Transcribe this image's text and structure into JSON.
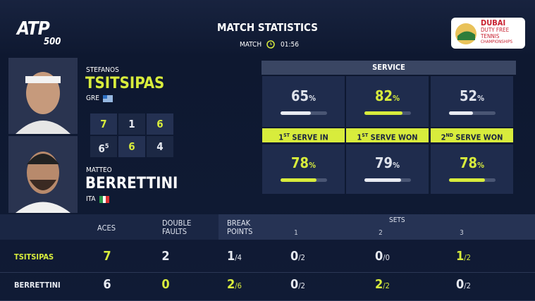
{
  "header": {
    "brand": "ATP",
    "tier": "500",
    "title": "MATCH STATISTICS",
    "match_label": "MATCH",
    "match_time": "01:56",
    "sponsor": [
      "DUBAI",
      "DUTY FREE",
      "TENNIS",
      "CHAMPIONSHIPS"
    ]
  },
  "highlight_color": "#d8ec3c",
  "players": [
    {
      "first": "STEFANOS",
      "last": "TSITSIPAS",
      "country": "GRE",
      "scores": [
        {
          "games": 7,
          "won": true
        },
        {
          "games": 1
        },
        {
          "games": 6,
          "won": true
        }
      ]
    },
    {
      "first": "MATTEO",
      "last": "BERRETTINI",
      "country": "ITA",
      "scores": [
        {
          "games": 6,
          "tiebreak": 5
        },
        {
          "games": 6,
          "won": true
        },
        {
          "games": 4
        }
      ]
    }
  ],
  "service": {
    "title": "SERVICE",
    "percent_sign": "%",
    "labels": [
      {
        "num": "1",
        "sup": "ST",
        "rest": "SERVE IN"
      },
      {
        "num": "1",
        "sup": "ST",
        "rest": "SERVE WON"
      },
      {
        "num": "2",
        "sup": "ND",
        "rest": "SERVE WON"
      }
    ],
    "rows": [
      [
        {
          "value": 65
        },
        {
          "value": 82,
          "highlight": true
        },
        {
          "value": 52
        }
      ],
      [
        {
          "value": 78,
          "highlight": true
        },
        {
          "value": 79
        },
        {
          "value": 78,
          "highlight": true
        }
      ]
    ]
  },
  "table": {
    "headers": {
      "aces": "ACES",
      "double_faults": [
        "DOUBLE",
        "FAULTS"
      ],
      "break_points": [
        "BREAK",
        "POINTS"
      ],
      "sets": "SETS",
      "set_numbers": [
        "1",
        "2",
        "3"
      ]
    },
    "rows": [
      {
        "name": "TSITSIPAS",
        "aces": {
          "value": 7,
          "highlight": true
        },
        "double_faults": {
          "value": 2
        },
        "break_points": {
          "won": 1,
          "of": "/4"
        },
        "sets": [
          {
            "won": 0,
            "of": "/2"
          },
          {
            "won": 0,
            "of": "/0"
          },
          {
            "won": 1,
            "of": "/2",
            "highlight": true
          }
        ]
      },
      {
        "name": "BERRETTINI",
        "aces": {
          "value": 6
        },
        "double_faults": {
          "value": 0,
          "highlight": true
        },
        "break_points": {
          "won": 2,
          "of": "/6",
          "highlight": true
        },
        "sets": [
          {
            "won": 0,
            "of": "/2"
          },
          {
            "won": 2,
            "of": "/2",
            "highlight": true
          },
          {
            "won": 0,
            "of": "/2"
          }
        ]
      }
    ]
  }
}
